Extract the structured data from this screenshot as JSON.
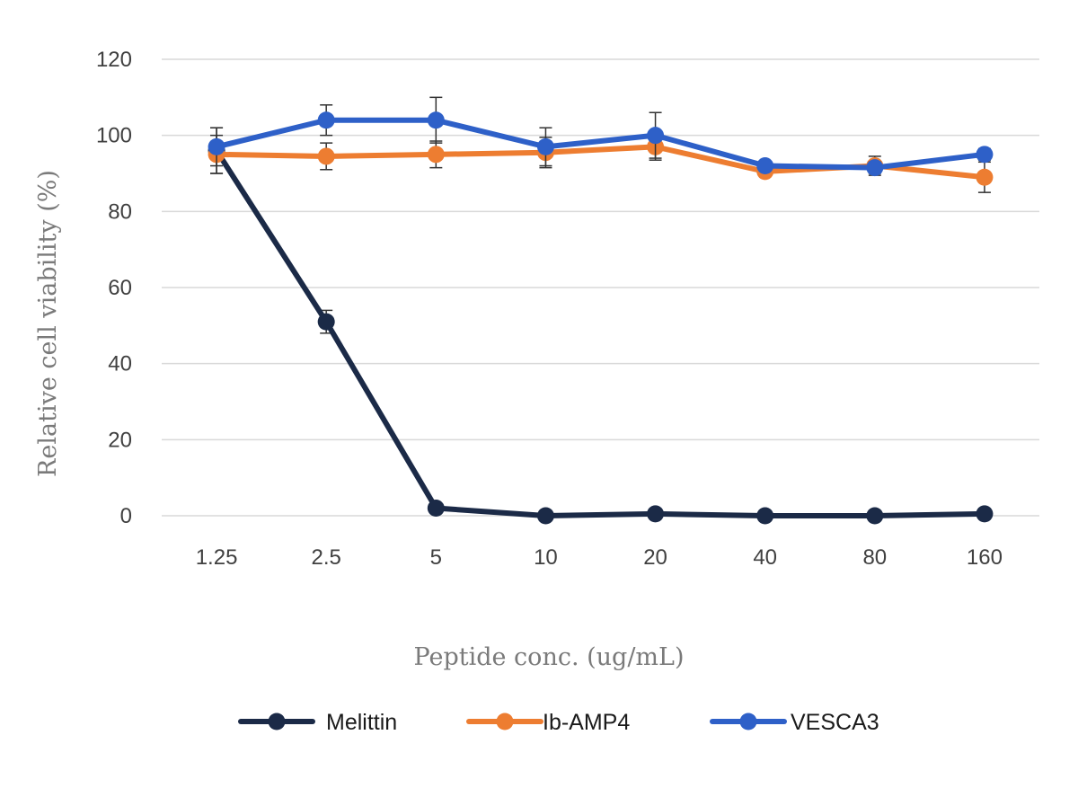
{
  "chart_data": {
    "type": "line",
    "title": "",
    "xlabel": "Peptide conc. (ug/mL)",
    "ylabel": "Relative cell viability (%)",
    "categories": [
      "1.25",
      "2.5",
      "5",
      "10",
      "20",
      "40",
      "80",
      "160"
    ],
    "ylim": [
      0,
      120
    ],
    "yticks": [
      "0",
      "20",
      "40",
      "60",
      "80",
      "100",
      "120"
    ],
    "grid": "horizontal",
    "legend_position": "bottom",
    "series": [
      {
        "name": "Melittin",
        "color": "#1b2a47",
        "values": [
          96,
          51,
          2,
          0,
          0.5,
          0,
          0,
          0.5
        ],
        "errors": [
          6,
          3,
          1,
          0.5,
          0.5,
          0.5,
          0.5,
          0.5
        ]
      },
      {
        "name": "Ib-AMP4",
        "color": "#ed7d31",
        "values": [
          95,
          94.5,
          95,
          95.5,
          97,
          90.5,
          92,
          89
        ],
        "errors": [
          5,
          3.5,
          3.5,
          4,
          3.5,
          1,
          2.5,
          4
        ]
      },
      {
        "name": "VESCA3",
        "color": "#2e60c8",
        "values": [
          97,
          104,
          104,
          97,
          100,
          92,
          91.5,
          95
        ],
        "errors": [
          5,
          4,
          6,
          5,
          6,
          1,
          1.5,
          1.5
        ]
      }
    ]
  }
}
